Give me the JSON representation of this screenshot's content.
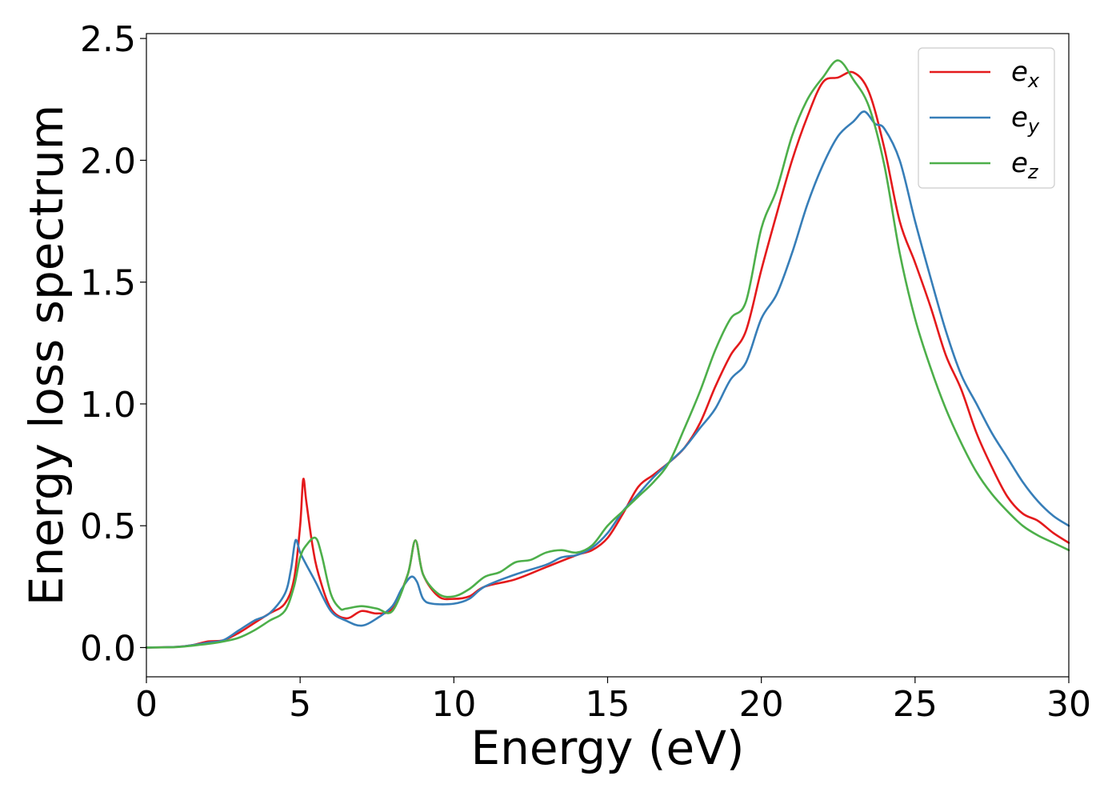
{
  "chart_data": {
    "type": "line",
    "title": "",
    "xlabel": "Energy (eV)",
    "ylabel": "Energy loss spectrum",
    "xlim": [
      0,
      30
    ],
    "ylim": [
      -0.12,
      2.52
    ],
    "xticks": [
      0,
      5,
      10,
      15,
      20,
      25,
      30
    ],
    "xtick_labels": [
      "0",
      "5",
      "10",
      "15",
      "20",
      "25",
      "30"
    ],
    "yticks": [
      0.0,
      0.5,
      1.0,
      1.5,
      2.0,
      2.5
    ],
    "ytick_labels": [
      "0.0",
      "0.5",
      "1.0",
      "1.5",
      "2.0",
      "2.5"
    ],
    "grid": false,
    "legend_position": "top-right",
    "series": [
      {
        "name": "e_x",
        "legend_base": "e",
        "legend_sub": "x",
        "color": "#e41a1c",
        "x": [
          0,
          1,
          1.5,
          2,
          2.5,
          3,
          3.5,
          4,
          4.5,
          4.8,
          5,
          5.1,
          5.2,
          5.4,
          5.6,
          6,
          6.5,
          7,
          7.5,
          8,
          8.5,
          8.75,
          9,
          9.5,
          10,
          10.5,
          11,
          12,
          13,
          14,
          14.5,
          15,
          15.5,
          16,
          16.5,
          17,
          17.5,
          18,
          18.5,
          19,
          19.5,
          20,
          20.5,
          21,
          21.5,
          22,
          22.5,
          23,
          23.5,
          24,
          24.5,
          25,
          25.5,
          26,
          26.5,
          27,
          27.5,
          28,
          28.5,
          29,
          29.5,
          30
        ],
        "y": [
          0.0,
          0.003,
          0.01,
          0.025,
          0.03,
          0.06,
          0.1,
          0.14,
          0.18,
          0.28,
          0.5,
          0.69,
          0.6,
          0.42,
          0.3,
          0.16,
          0.12,
          0.15,
          0.14,
          0.16,
          0.3,
          0.44,
          0.3,
          0.21,
          0.2,
          0.21,
          0.25,
          0.28,
          0.33,
          0.38,
          0.4,
          0.45,
          0.55,
          0.66,
          0.71,
          0.76,
          0.82,
          0.92,
          1.07,
          1.2,
          1.3,
          1.55,
          1.78,
          2.0,
          2.18,
          2.32,
          2.34,
          2.36,
          2.28,
          2.05,
          1.75,
          1.58,
          1.4,
          1.2,
          1.06,
          0.88,
          0.74,
          0.62,
          0.55,
          0.52,
          0.47,
          0.43
        ]
      },
      {
        "name": "e_y",
        "legend_base": "e",
        "legend_sub": "y",
        "color": "#377eb8",
        "x": [
          0,
          1,
          1.5,
          2,
          2.5,
          3,
          3.5,
          4,
          4.5,
          4.7,
          4.85,
          5,
          5.2,
          5.5,
          6,
          6.5,
          7,
          7.5,
          8,
          8.3,
          8.6,
          8.8,
          9,
          9.3,
          10,
          10.5,
          11,
          12,
          13,
          13.5,
          14,
          14.5,
          15,
          15.5,
          16,
          16.5,
          17,
          17.5,
          18,
          18.5,
          19,
          19.5,
          20,
          20.5,
          21,
          21.5,
          22,
          22.5,
          23,
          23.35,
          23.7,
          24,
          24.5,
          25,
          25.5,
          26,
          26.5,
          27,
          27.5,
          28,
          28.5,
          29,
          29.5,
          30
        ],
        "y": [
          0.0,
          0.003,
          0.01,
          0.02,
          0.03,
          0.07,
          0.11,
          0.14,
          0.22,
          0.32,
          0.44,
          0.39,
          0.34,
          0.27,
          0.15,
          0.11,
          0.09,
          0.12,
          0.17,
          0.24,
          0.29,
          0.27,
          0.2,
          0.18,
          0.18,
          0.2,
          0.25,
          0.3,
          0.34,
          0.37,
          0.38,
          0.41,
          0.47,
          0.56,
          0.63,
          0.7,
          0.76,
          0.82,
          0.9,
          0.98,
          1.1,
          1.17,
          1.35,
          1.45,
          1.62,
          1.82,
          1.98,
          2.1,
          2.16,
          2.2,
          2.15,
          2.13,
          2.0,
          1.75,
          1.52,
          1.3,
          1.12,
          1.0,
          0.88,
          0.78,
          0.68,
          0.6,
          0.54,
          0.5
        ]
      },
      {
        "name": "e_z",
        "legend_base": "e",
        "legend_sub": "z",
        "color": "#4daf4a",
        "x": [
          0,
          1,
          1.5,
          2,
          2.5,
          3,
          3.5,
          4,
          4.5,
          4.8,
          5,
          5.2,
          5.5,
          5.7,
          6,
          6.3,
          6.5,
          7,
          7.5,
          8,
          8.5,
          8.75,
          9,
          9.5,
          10,
          10.5,
          11,
          11.5,
          12,
          12.5,
          13,
          13.5,
          14,
          14.5,
          15,
          15.5,
          16,
          16.5,
          17,
          17.5,
          18,
          18.5,
          19,
          19.5,
          20,
          20.5,
          21,
          21.5,
          22,
          22.5,
          23,
          23.5,
          24,
          24.5,
          25,
          25.5,
          26,
          26.5,
          27,
          27.5,
          28,
          28.5,
          29,
          29.5,
          30
        ],
        "y": [
          0.0,
          0.002,
          0.008,
          0.015,
          0.025,
          0.04,
          0.07,
          0.11,
          0.15,
          0.25,
          0.37,
          0.42,
          0.45,
          0.38,
          0.22,
          0.16,
          0.16,
          0.17,
          0.16,
          0.15,
          0.3,
          0.44,
          0.3,
          0.22,
          0.21,
          0.24,
          0.29,
          0.31,
          0.35,
          0.36,
          0.39,
          0.4,
          0.39,
          0.42,
          0.5,
          0.56,
          0.62,
          0.68,
          0.76,
          0.9,
          1.05,
          1.22,
          1.35,
          1.42,
          1.72,
          1.88,
          2.1,
          2.25,
          2.34,
          2.41,
          2.33,
          2.22,
          1.98,
          1.62,
          1.35,
          1.15,
          0.98,
          0.84,
          0.72,
          0.63,
          0.56,
          0.5,
          0.46,
          0.43,
          0.4
        ]
      }
    ]
  }
}
